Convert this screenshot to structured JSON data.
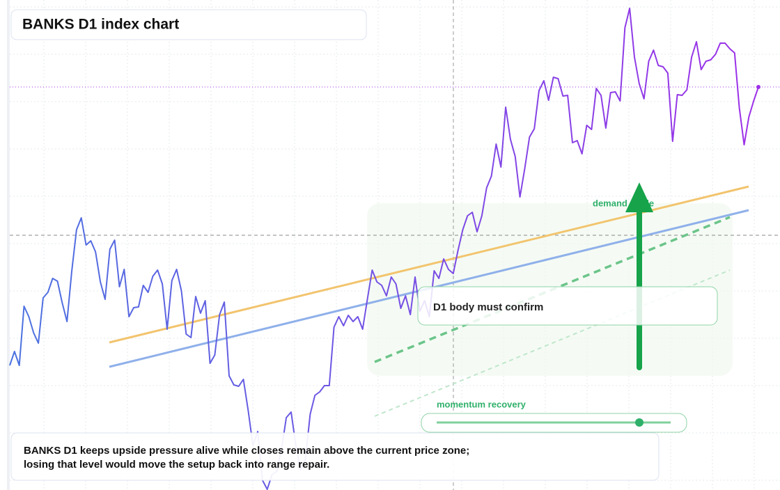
{
  "chart_data": {
    "type": "line",
    "title": "BANKS D1 index chart",
    "annotations": [
      "demand guide",
      "D1 body must confirm",
      "momentum recovery"
    ],
    "caption": [
      "BANKS D1 keeps upside pressure alive while closes remain above the current price zone;",
      "losing that level would move the setup back into range repair."
    ],
    "ylim": [
      0,
      70
    ],
    "series": [
      {
        "colors": [
          "#4a72e0",
          "#9d2fe8"
        ],
        "values": [
          17.9,
          19.9,
          17.9,
          26.4,
          24.9,
          22.6,
          21.1,
          27.6,
          28.4,
          30.4,
          30.0,
          26.9,
          24.2,
          31.4,
          37.4,
          39.1,
          35.2,
          35.8,
          34.2,
          29.9,
          27.4,
          34.6,
          35.9,
          29.2,
          31.7,
          24.9,
          26.2,
          26.3,
          29.4,
          28.4,
          30.7,
          31.6,
          29.6,
          23.1,
          30.1,
          31.7,
          28.6,
          22.4,
          21.9,
          27.8,
          25.4,
          27.2,
          18.2,
          19.4,
          25.2,
          27.0,
          16.4,
          15.1,
          14.9,
          15.9,
          11.4,
          6.4,
          8.4,
          1.4,
          0.1,
          2.2,
          2.7,
          5.9,
          10.4,
          11.2,
          6.4,
          2.9,
          4.4,
          10.9,
          13.6,
          14.1,
          15.0,
          15.0,
          23.4,
          24.9,
          23.6,
          25.1,
          24.2,
          24.9,
          23.1,
          27.4,
          31.6,
          29.9,
          29.4,
          27.9,
          30.6,
          29.6,
          26.1,
          27.9,
          25.2,
          30.6,
          25.7,
          27.2,
          24.9,
          31.5,
          30.4,
          33.2,
          31.7,
          31.1,
          34.4,
          37.4,
          39.4,
          39.9,
          37.1,
          39.4,
          43.4,
          45.1,
          49.7,
          46.4,
          55.0,
          50.4,
          47.9,
          42.1,
          46.2,
          50.7,
          51.9,
          57.4,
          58.8,
          56.0,
          59.3,
          59.1,
          56.6,
          56.7,
          49.9,
          50.2,
          48.3,
          52.4,
          51.8,
          57.7,
          56.7,
          52.0,
          57.1,
          57.2,
          55.9,
          66.4,
          69.2,
          62.2,
          58.4,
          56.2,
          61.6,
          63.2,
          61.0,
          60.8,
          59.9,
          50.1,
          56.8,
          56.7,
          57.5,
          62.2,
          64.4,
          60.4,
          61.6,
          61.8,
          62.6,
          64.2,
          64.2,
          63.4,
          62.8,
          54.9,
          49.6,
          53.6,
          55.9,
          57.9
        ]
      }
    ]
  }
}
